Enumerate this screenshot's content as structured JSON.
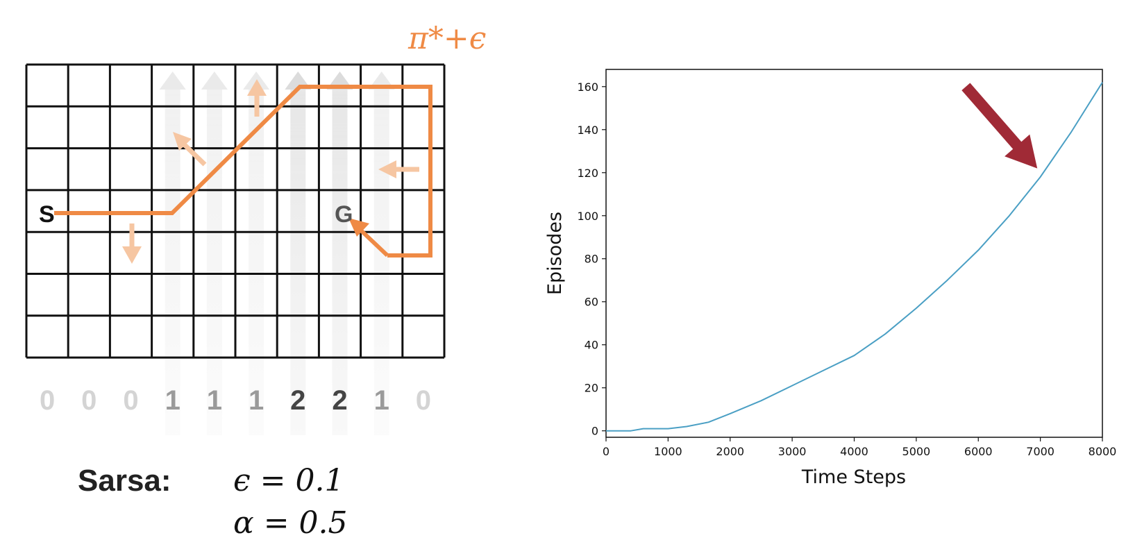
{
  "gridworld": {
    "columns": 10,
    "rows": 7,
    "start_label": "S",
    "goal_label": "G",
    "wind_strengths": [
      "0",
      "0",
      "0",
      "1",
      "1",
      "1",
      "2",
      "2",
      "1",
      "0"
    ],
    "policy_label": "π*+ϵ",
    "colors": {
      "path": "#ef8a45",
      "faint_arrow": "#f6c6a2",
      "grid": "#111111"
    }
  },
  "params": {
    "algorithm": "Sarsa:",
    "epsilon": "ϵ = 0.1",
    "alpha": "α = 0.5"
  },
  "chart_data": {
    "type": "line",
    "xlabel": "Time Steps",
    "ylabel": "Episodes",
    "xlim": [
      0,
      8000
    ],
    "ylim": [
      -3,
      168
    ],
    "x_ticks": [
      "0",
      "1000",
      "2000",
      "3000",
      "4000",
      "5000",
      "6000",
      "7000",
      "8000"
    ],
    "y_ticks": [
      "0",
      "20",
      "40",
      "60",
      "80",
      "100",
      "120",
      "140",
      "160"
    ],
    "series": [
      {
        "color": "#4a9fc4",
        "points": [
          [
            0,
            0
          ],
          [
            400,
            0
          ],
          [
            600,
            1
          ],
          [
            1000,
            1
          ],
          [
            1300,
            2
          ],
          [
            1650,
            4
          ],
          [
            2000,
            8
          ],
          [
            2500,
            14
          ],
          [
            3000,
            21
          ],
          [
            3500,
            28
          ],
          [
            4000,
            35
          ],
          [
            4500,
            45
          ],
          [
            5000,
            57
          ],
          [
            5500,
            70
          ],
          [
            6000,
            84
          ],
          [
            6500,
            100
          ],
          [
            7000,
            118
          ],
          [
            7500,
            139
          ],
          [
            8000,
            162
          ]
        ]
      }
    ],
    "annotation": {
      "type": "arrow",
      "color": "#a02a36",
      "from": [
        5800,
        160
      ],
      "to": [
        6950,
        122
      ]
    }
  }
}
